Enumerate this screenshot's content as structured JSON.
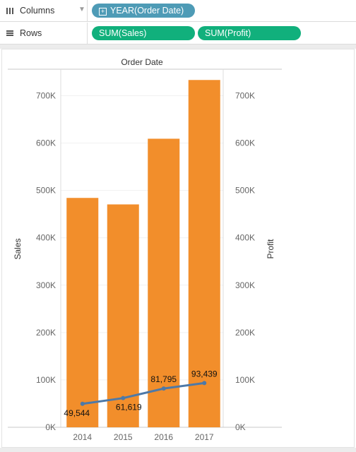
{
  "shelves": {
    "columns": {
      "label": "Columns",
      "icon": "columns-icon",
      "pills": [
        {
          "label": "YEAR(Order Date)",
          "color": "#4e9bb6"
        }
      ]
    },
    "rows": {
      "label": "Rows",
      "icon": "rows-icon",
      "pills": [
        {
          "label": "SUM(Sales)",
          "color": "#11b07c"
        },
        {
          "label": "SUM(Profit)",
          "color": "#11b07c"
        }
      ]
    }
  },
  "chart_data": {
    "type": "bar",
    "title": "Order Date",
    "categories": [
      "2014",
      "2015",
      "2016",
      "2017"
    ],
    "series": [
      {
        "name": "SUM(Sales)",
        "type": "bar",
        "axis": "left",
        "color": "#f28e2b",
        "values": [
          484247,
          470533,
          609206,
          733215
        ]
      },
      {
        "name": "SUM(Profit)",
        "type": "line",
        "axis": "right",
        "color": "#4e79a7",
        "values": [
          49544,
          61619,
          81795,
          93439
        ],
        "labels": [
          "49,544",
          "61,619",
          "81,795",
          "93,439"
        ]
      }
    ],
    "ylabel": "Sales",
    "y2label": "Profit",
    "ylim": [
      0,
      750000
    ],
    "y2lim": [
      0,
      750000
    ],
    "yticks": [
      0,
      100000,
      200000,
      300000,
      400000,
      500000,
      600000,
      700000
    ],
    "ytick_labels": [
      "0K",
      "100K",
      "200K",
      "300K",
      "400K",
      "500K",
      "600K",
      "700K"
    ],
    "y2tick_labels": [
      "0K",
      "100K",
      "200K",
      "300K",
      "400K",
      "500K",
      "600K",
      "700K"
    ],
    "grid": true,
    "legend": "none"
  }
}
